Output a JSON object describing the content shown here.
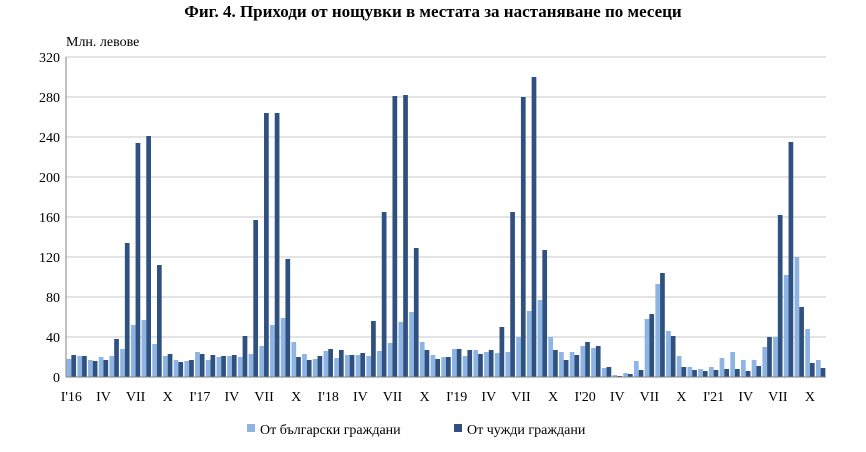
{
  "chart_data": {
    "type": "bar",
    "title": "Фиг. 4. Приходи от нощувки в местата за настаняване по месеци",
    "ylabel": "Млн. левове",
    "ylim": [
      0,
      320
    ],
    "yticks": [
      0,
      40,
      80,
      120,
      160,
      200,
      240,
      280,
      320
    ],
    "grid": true,
    "legend_position": "bottom",
    "colors": {
      "bulgarian": "#8eb4e3",
      "foreign": "#2f5180"
    },
    "x_tick_labels": [
      "I'16",
      "IV",
      "VII",
      "X",
      "I'17",
      "IV",
      "VII",
      "X",
      "I'18",
      "IV",
      "VII",
      "X",
      "I'19",
      "IV",
      "VII",
      "X",
      "I'20",
      "IV",
      "VII",
      "X",
      "I'21",
      "IV",
      "VII",
      "X"
    ],
    "categories": [
      "I'16",
      "II'16",
      "III'16",
      "IV'16",
      "V'16",
      "VI'16",
      "VII'16",
      "VIII'16",
      "IX'16",
      "X'16",
      "XI'16",
      "XII'16",
      "I'17",
      "II'17",
      "III'17",
      "IV'17",
      "V'17",
      "VI'17",
      "VII'17",
      "VIII'17",
      "IX'17",
      "X'17",
      "XI'17",
      "XII'17",
      "I'18",
      "II'18",
      "III'18",
      "IV'18",
      "V'18",
      "VI'18",
      "VII'18",
      "VIII'18",
      "IX'18",
      "X'18",
      "XI'18",
      "XII'18",
      "I'19",
      "II'19",
      "III'19",
      "IV'19",
      "V'19",
      "VI'19",
      "VII'19",
      "VIII'19",
      "IX'19",
      "X'19",
      "XI'19",
      "XII'19",
      "I'20",
      "II'20",
      "III'20",
      "IV'20",
      "V'20",
      "VI'20",
      "VII'20",
      "VIII'20",
      "IX'20",
      "X'20",
      "XI'20",
      "XII'20",
      "I'21",
      "II'21",
      "III'21",
      "IV'21",
      "V'21",
      "VI'21",
      "VII'21",
      "VIII'21",
      "IX'21",
      "X'21"
    ],
    "series": [
      {
        "name": "От български граждани",
        "values": [
          18,
          21,
          17,
          20,
          21,
          28,
          52,
          57,
          33,
          21,
          17,
          16,
          25,
          17,
          20,
          21,
          20,
          23,
          31,
          52,
          59,
          35,
          23,
          18,
          26,
          19,
          22,
          22,
          21,
          26,
          34,
          55,
          65,
          35,
          22,
          20,
          28,
          21,
          27,
          25,
          24,
          25,
          40,
          66,
          77,
          40,
          25,
          25,
          31,
          29,
          9,
          2,
          4,
          16,
          58,
          93,
          46,
          21,
          10,
          8,
          10,
          19,
          25,
          17,
          17,
          30,
          40,
          102,
          120,
          48
        ]
      },
      {
        "name": "От чужди граждани",
        "values": [
          22,
          21,
          16,
          17,
          38,
          134,
          234,
          241,
          112,
          23,
          15,
          17,
          23,
          22,
          21,
          22,
          41,
          157,
          264,
          264,
          118,
          20,
          17,
          21,
          28,
          27,
          22,
          24,
          56,
          165,
          281,
          282,
          129,
          27,
          18,
          20,
          28,
          27,
          23,
          27,
          50,
          165,
          280,
          300,
          127,
          27,
          17,
          22,
          35,
          31,
          10,
          1,
          3,
          7,
          63,
          104,
          41,
          10,
          7,
          6,
          7,
          8,
          8,
          6,
          11,
          40,
          162,
          235,
          70,
          14
        ]
      },
      {
        "name": "",
        "values": [
          null,
          null,
          null,
          null,
          null,
          null,
          null,
          null,
          null,
          null,
          null,
          null,
          null,
          null,
          null,
          null,
          null,
          null,
          null,
          null,
          null,
          null,
          null,
          null,
          null,
          null,
          null,
          null,
          null,
          null,
          null,
          null,
          null,
          null,
          null,
          null,
          null,
          null,
          null,
          null,
          null,
          null,
          null,
          null,
          null,
          null,
          null,
          null,
          null,
          null,
          null,
          null,
          null,
          null,
          null,
          null,
          null,
          null,
          null,
          null,
          null,
          null,
          null,
          null,
          null,
          null,
          null,
          null,
          null,
          null
        ]
      }
    ],
    "extra_last": {
      "bulgarian": 17,
      "foreign": 9
    }
  }
}
